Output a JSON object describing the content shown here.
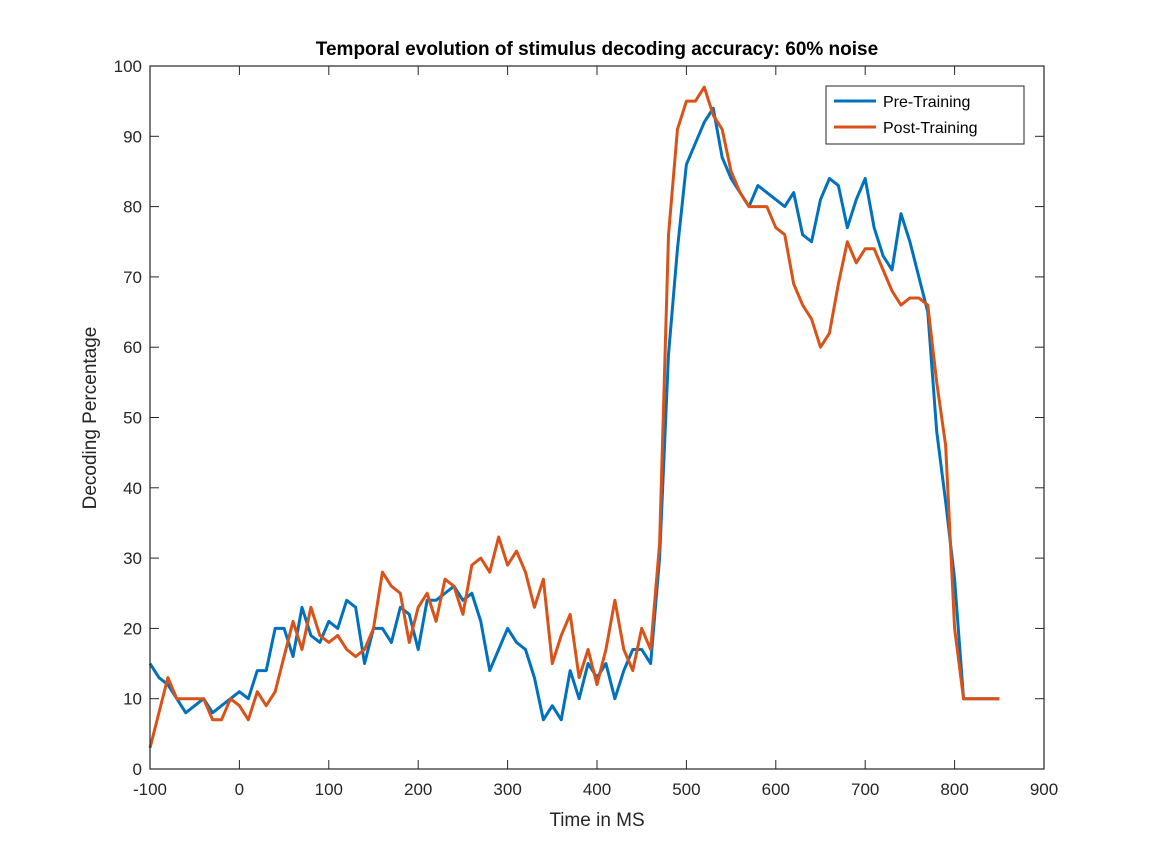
{
  "chart_data": {
    "type": "line",
    "title": "Temporal evolution of stimulus decoding accuracy: 60% noise",
    "xlabel": "Time in MS",
    "ylabel": "Decoding Percentage",
    "xlim": [
      -100,
      900
    ],
    "ylim": [
      0,
      100
    ],
    "xticks": [
      -100,
      0,
      100,
      200,
      300,
      400,
      500,
      600,
      700,
      800,
      900
    ],
    "yticks": [
      0,
      10,
      20,
      30,
      40,
      50,
      60,
      70,
      80,
      90,
      100
    ],
    "grid": false,
    "legend_position": "top-right",
    "x": [
      -100,
      -90,
      -80,
      -70,
      -60,
      -50,
      -40,
      -30,
      -20,
      -10,
      0,
      10,
      20,
      30,
      40,
      50,
      60,
      70,
      80,
      90,
      100,
      110,
      120,
      130,
      140,
      150,
      160,
      170,
      180,
      190,
      200,
      210,
      220,
      230,
      240,
      250,
      260,
      270,
      280,
      290,
      300,
      310,
      320,
      330,
      340,
      350,
      360,
      370,
      380,
      390,
      400,
      410,
      420,
      430,
      440,
      450,
      460,
      470,
      480,
      490,
      500,
      510,
      520,
      530,
      540,
      550,
      560,
      570,
      580,
      590,
      600,
      610,
      620,
      630,
      640,
      650,
      660,
      670,
      680,
      690,
      700,
      710,
      720,
      730,
      740,
      750,
      760,
      770,
      780,
      790,
      800,
      810,
      820,
      830,
      840,
      850
    ],
    "series": [
      {
        "name": "Pre-Training",
        "color": "#0072BD",
        "values": [
          15,
          13,
          12,
          10,
          8,
          9,
          10,
          8,
          9,
          10,
          11,
          10,
          14,
          14,
          20,
          20,
          16,
          23,
          19,
          18,
          21,
          20,
          24,
          23,
          15,
          20,
          20,
          18,
          23,
          22,
          17,
          24,
          24,
          25,
          26,
          24,
          25,
          21,
          14,
          17,
          20,
          18,
          17,
          13,
          7,
          9,
          7,
          14,
          10,
          15,
          13,
          15,
          10,
          14,
          17,
          17,
          15,
          30,
          59,
          74,
          86,
          89,
          92,
          94,
          87,
          84,
          82,
          80,
          83,
          82,
          81,
          80,
          82,
          76,
          75,
          81,
          84,
          83,
          77,
          81,
          84,
          77,
          73,
          71,
          79,
          75,
          70,
          65,
          48,
          38,
          27,
          10,
          10,
          10,
          10,
          10
        ]
      },
      {
        "name": "Post-Training",
        "color": "#D95319",
        "values": [
          3,
          8,
          13,
          10,
          10,
          10,
          10,
          7,
          7,
          10,
          9,
          7,
          11,
          9,
          11,
          16,
          21,
          17,
          23,
          19,
          18,
          19,
          17,
          16,
          17,
          20,
          28,
          26,
          25,
          18,
          23,
          25,
          21,
          27,
          26,
          22,
          29,
          30,
          28,
          33,
          29,
          31,
          28,
          23,
          27,
          15,
          19,
          22,
          13,
          17,
          12,
          17,
          24,
          17,
          14,
          20,
          17,
          32,
          76,
          91,
          95,
          95,
          97,
          93,
          91,
          85,
          82,
          80,
          80,
          80,
          77,
          76,
          69,
          66,
          64,
          60,
          62,
          69,
          75,
          72,
          74,
          74,
          71,
          68,
          66,
          67,
          67,
          66,
          55,
          46,
          20,
          10,
          10,
          10,
          10,
          10
        ]
      }
    ]
  }
}
